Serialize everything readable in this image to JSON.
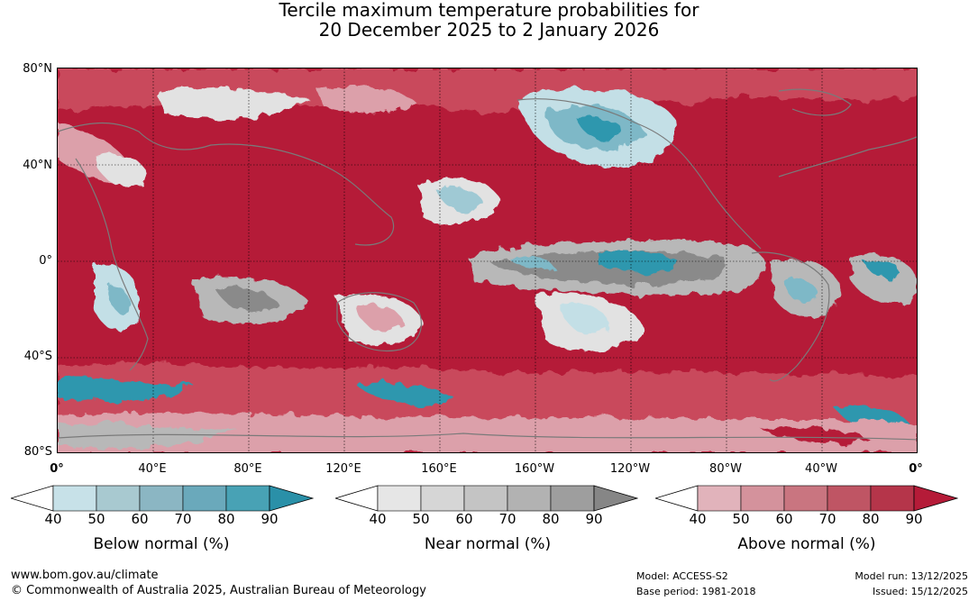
{
  "title": {
    "line1": "Tercile maximum temperature probabilities for",
    "line2": "20 December 2025 to 2 January 2026"
  },
  "map": {
    "lat_labels": [
      "80°N",
      "40°N",
      "0°",
      "40°S",
      "80°S"
    ],
    "lon_labels": [
      "0°",
      "40°E",
      "80°E",
      "120°E",
      "160°E",
      "160°W",
      "120°W",
      "80°W",
      "40°W",
      "0°"
    ]
  },
  "legends": [
    {
      "caption": "Below normal (%)",
      "ticks": [
        "40",
        "50",
        "60",
        "70",
        "80",
        "90"
      ],
      "colors": [
        "#ffffff",
        "#c7e1e8",
        "#a8c9d0",
        "#8bb6c3",
        "#6aa9bb",
        "#48a2b5",
        "#2a90a8"
      ]
    },
    {
      "caption": "Near normal (%)",
      "ticks": [
        "40",
        "50",
        "60",
        "70",
        "80",
        "90"
      ],
      "colors": [
        "#ffffff",
        "#e6e6e6",
        "#d6d6d6",
        "#c4c4c4",
        "#b2b2b2",
        "#9e9e9e",
        "#868686"
      ]
    },
    {
      "caption": "Above normal (%)",
      "ticks": [
        "40",
        "50",
        "60",
        "70",
        "80",
        "90"
      ],
      "colors": [
        "#ffffff",
        "#e1b3bb",
        "#d4929c",
        "#c97580",
        "#bf5564",
        "#b5354a",
        "#b51b38"
      ]
    }
  ],
  "footer": {
    "url": "www.bom.gov.au/climate",
    "copyright": "© Commonwealth of Australia 2025, Australian Bureau of Meteorology",
    "model": "Model: ACCESS-S2",
    "base_period": "Base period: 1981-2018",
    "model_run": "Model run: 13/12/2025",
    "issued": "Issued: 15/12/2025"
  },
  "colors": {
    "above_strong": "#b51b38",
    "above_mid": "#c94a5c",
    "above_light": "#dca0aa",
    "near_light": "#e2e2e2",
    "near_mid": "#b8b8b8",
    "near_strong": "#8a8a8a",
    "below_light": "#c3dfe6",
    "below_mid": "#7eb8c7",
    "below_strong": "#2f97ae",
    "coast": "#7a7a7a"
  }
}
